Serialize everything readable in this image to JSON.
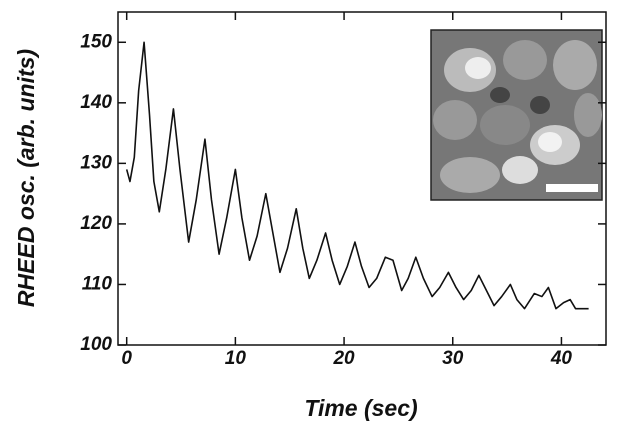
{
  "chart_data": {
    "type": "line",
    "x_label": "Time (sec)",
    "y_label": "RHEED osc. (arb. units)",
    "xlim": [
      -0.8,
      44.1
    ],
    "xticks": [
      0,
      10,
      20,
      30,
      40
    ],
    "ylim": [
      100,
      155
    ],
    "yticks": [
      100,
      110,
      120,
      130,
      140,
      150
    ],
    "series": [
      {
        "color": "#111111",
        "x": [
          0,
          0.3,
          0.7,
          1.1,
          1.6,
          2.1,
          2.5,
          3.0,
          3.6,
          4.3,
          4.9,
          5.7,
          6.4,
          7.2,
          7.8,
          8.5,
          9.2,
          10.0,
          10.6,
          11.3,
          12.0,
          12.8,
          13.4,
          14.1,
          14.8,
          15.6,
          16.2,
          16.8,
          17.5,
          18.3,
          18.9,
          19.6,
          20.3,
          21.0,
          21.6,
          22.3,
          23.0,
          23.8,
          24.5,
          25.3,
          25.9,
          26.6,
          27.3,
          28.1,
          28.8,
          29.6,
          30.3,
          31.0,
          31.7,
          32.4,
          33.1,
          33.8,
          34.5,
          35.3,
          35.9,
          36.6,
          37.5,
          38.2,
          38.8,
          39.5,
          40.2,
          40.8,
          41.3,
          41.8,
          42.5
        ],
        "values": [
          129,
          127,
          131,
          142,
          150,
          138,
          127,
          122,
          129,
          139,
          129,
          117,
          124,
          134,
          124,
          115,
          121,
          129,
          121,
          114,
          118,
          125,
          119,
          112,
          116,
          122.5,
          116,
          111,
          114,
          118.5,
          114,
          110,
          113,
          117,
          113,
          109.5,
          111,
          114.5,
          114,
          109,
          111,
          114.5,
          111,
          108,
          109.5,
          112,
          109.5,
          107.5,
          109,
          111.5,
          109,
          106.5,
          108,
          110,
          107.5,
          106,
          108.5,
          108,
          109.5,
          106,
          107,
          107.5,
          106,
          106,
          106
        ]
      }
    ]
  }
}
